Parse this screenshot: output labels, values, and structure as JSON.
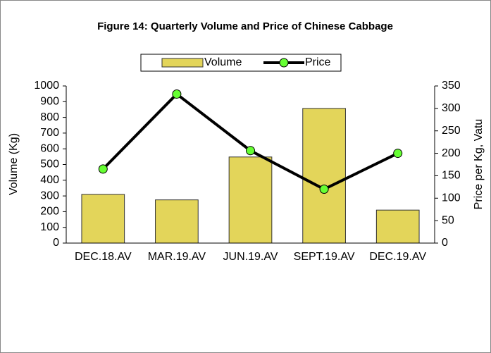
{
  "chart_data": {
    "type": "bar_line",
    "title": "Figure 14: Quarterly Volume and Price of Chinese Cabbage",
    "categories": [
      "DEC.18.AV",
      "MAR.19.AV",
      "JUN.19.AV",
      "SEPT.19.AV",
      "DEC.19.AV"
    ],
    "series": [
      {
        "name": "Volume",
        "type": "bar",
        "color": "#e3d55a",
        "values": [
          310,
          275,
          548,
          857,
          210
        ]
      },
      {
        "name": "Price",
        "type": "line",
        "axis": "y2",
        "color": "#000000",
        "marker_color": "#66ff33",
        "values": [
          165,
          332,
          206,
          120,
          200
        ]
      }
    ],
    "ylabel": "Volume (Kg)",
    "y2label": "Price per Kg, Vatu",
    "ylim": [
      0,
      1000
    ],
    "yticks": [
      0,
      100,
      200,
      300,
      400,
      500,
      600,
      700,
      800,
      900,
      1000
    ],
    "y2lim": [
      0,
      350
    ],
    "y2ticks": [
      0,
      50,
      100,
      150,
      200,
      250,
      300,
      350
    ],
    "legend": "top",
    "grid": false
  }
}
